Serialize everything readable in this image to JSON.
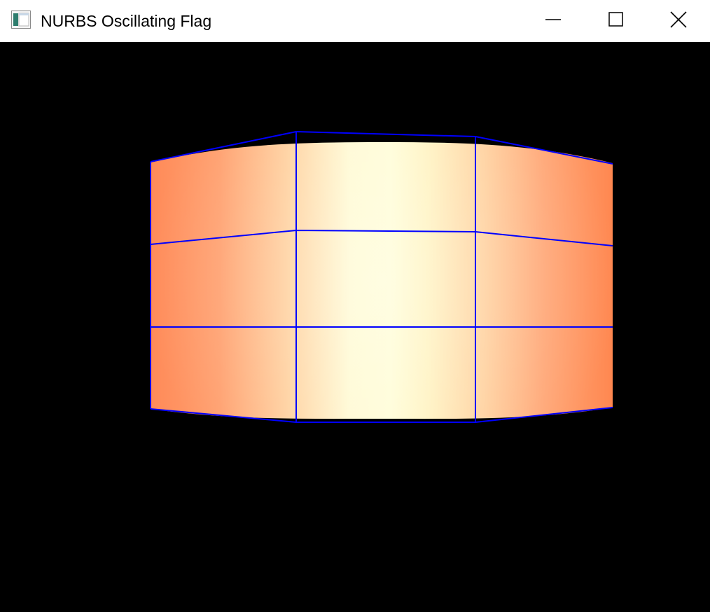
{
  "window": {
    "title": "NURBS Oscillating Flag",
    "controls": {
      "minimize_icon": "minimize-icon",
      "maximize_icon": "maximize-icon",
      "close_icon": "close-icon"
    },
    "app_icon": "app-window-icon"
  },
  "scene": {
    "background": "#000000",
    "control_grid_color": "#0000ff",
    "surface_colors": {
      "edge": "#ff8a58",
      "mid": "#ffd2a0",
      "center": "#fffdd8"
    }
  }
}
